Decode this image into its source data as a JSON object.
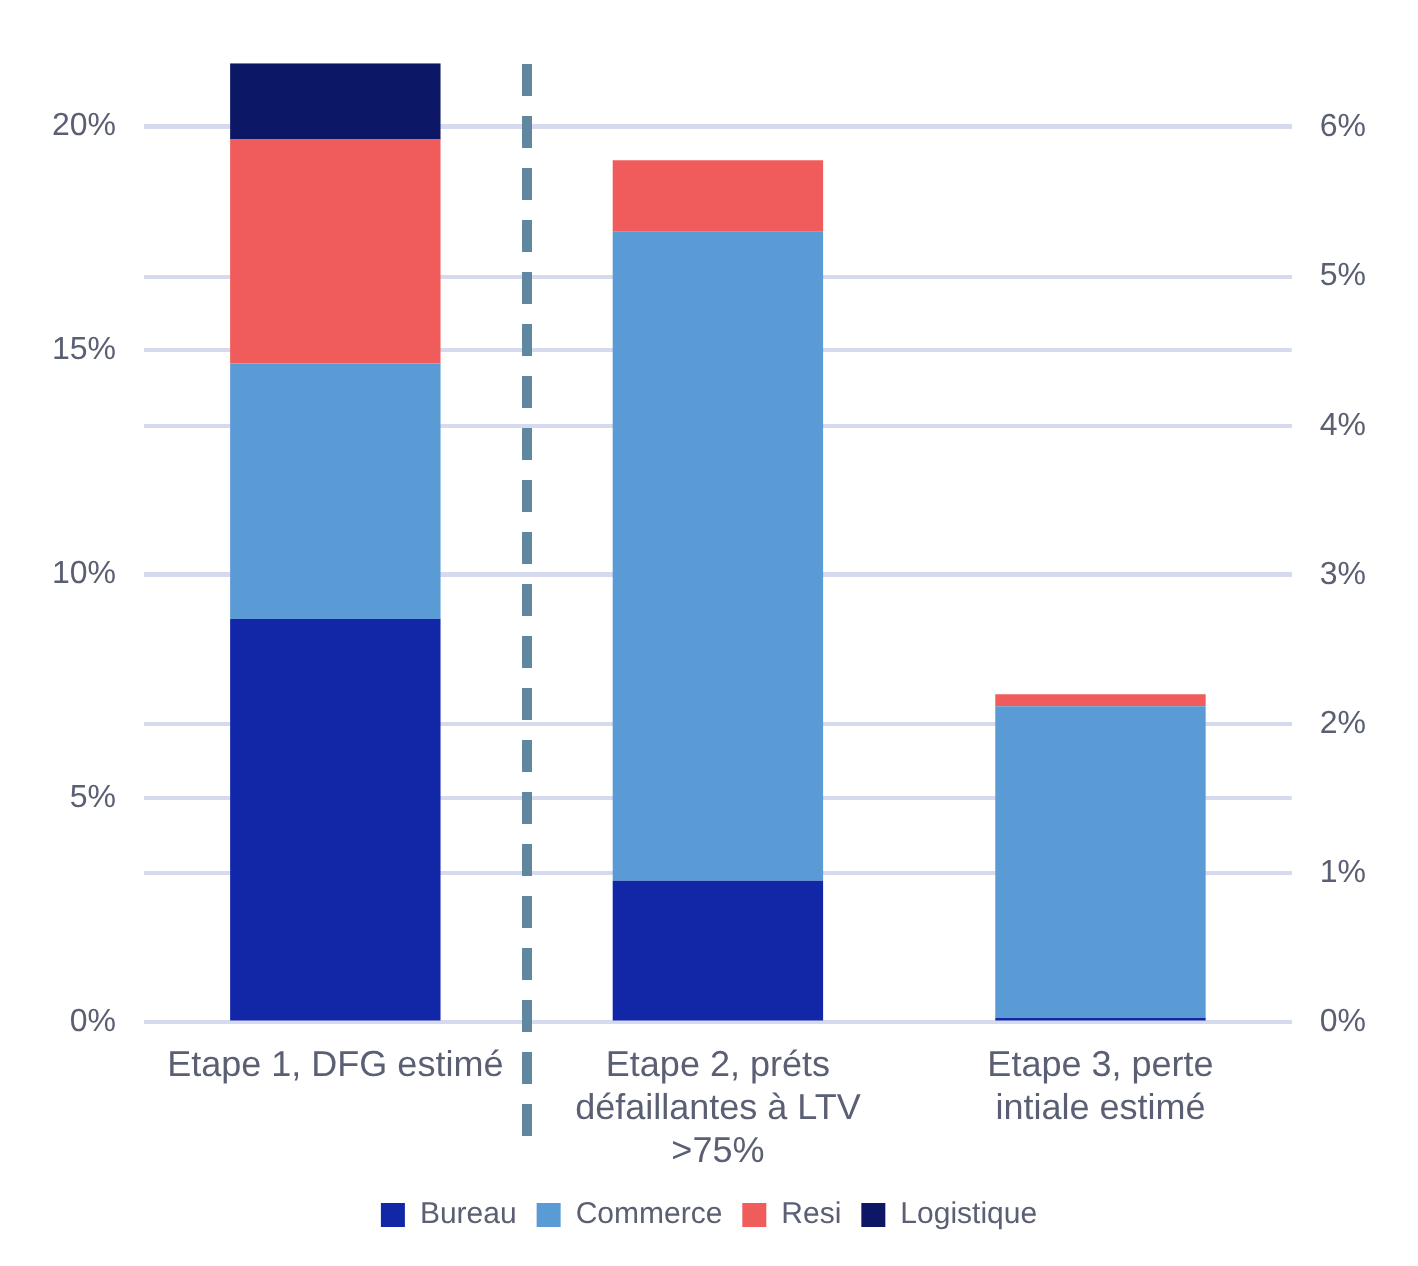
{
  "chart_data": {
    "type": "bar",
    "stacked": true,
    "categories": [
      "Etape 1, DFG estimé",
      "Etape 2, préts défaillantes à LTV >75%",
      "Etape 3, perte intiale estimé"
    ],
    "series": [
      {
        "name": "Bureau",
        "color": "#1226a8",
        "values": [
          9.0,
          null,
          null
        ]
      },
      {
        "name": "Commerce",
        "color": "#5b9bd5",
        "values": [
          5.7,
          null,
          null
        ]
      },
      {
        "name": "Resi",
        "color": "#f05c5c",
        "values": [
          5.0,
          null,
          null
        ]
      },
      {
        "name": "Logistique",
        "color": "#0c1866",
        "values": [
          1.7,
          null,
          null
        ]
      },
      {
        "color": "#1226a8",
        "axis": "y2",
        "values": [
          null,
          0.95,
          0.03
        ]
      },
      {
        "color": "#5b9bd5",
        "axis": "y2",
        "values": [
          null,
          4.35,
          2.09
        ]
      },
      {
        "color": "#f05c5c",
        "axis": "y2",
        "values": [
          null,
          0.48,
          0.08
        ]
      }
    ],
    "ylim": [
      0,
      21.4
    ],
    "yticks": [
      {
        "value": 0,
        "label": "0%"
      },
      {
        "value": 5,
        "label": "5%"
      },
      {
        "value": 10,
        "label": "10%"
      },
      {
        "value": 15,
        "label": "15%"
      },
      {
        "value": 20,
        "label": "20%"
      }
    ],
    "y2lim": [
      0,
      6.43
    ],
    "y2ticks": [
      {
        "value": 0,
        "label": "0%"
      },
      {
        "value": 1,
        "label": "1%"
      },
      {
        "value": 2,
        "label": "2%"
      },
      {
        "value": 3,
        "label": "3%"
      },
      {
        "value": 4,
        "label": "4%"
      },
      {
        "value": 5,
        "label": "5%"
      },
      {
        "value": 6,
        "label": "6%"
      }
    ],
    "grid": true,
    "legend": "bottom"
  }
}
